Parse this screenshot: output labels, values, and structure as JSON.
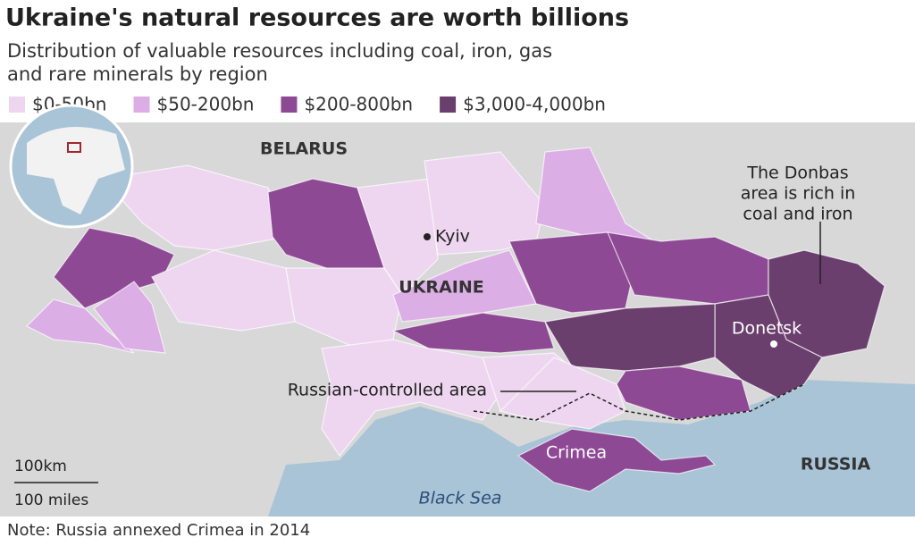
{
  "header": {
    "title": "Ukraine's natural resources are worth billions",
    "subtitle": [
      "Distribution of valuable resources including coal, iron, gas",
      "and rare minerals by region"
    ]
  },
  "legend": [
    {
      "label": "$0-50bn",
      "color": "#eed6f0"
    },
    {
      "label": "$50-200bn",
      "color": "#dcaee6"
    },
    {
      "label": "$200-800bn",
      "color": "#8e4994"
    },
    {
      "label": "$3,000-4,000bn",
      "color": "#6a3f6d"
    }
  ],
  "map": {
    "countries": [
      "BELARUS",
      "UKRAINE",
      "RUSSIA"
    ],
    "cities": [
      "Kyiv",
      "Donetsk"
    ],
    "areas": [
      "Crimea",
      "Black Sea"
    ],
    "annotations": {
      "russian_controlled": "Russian-controlled area",
      "donbas": [
        "The Donbas",
        "area is rich in",
        "coal and iron"
      ]
    },
    "scale": [
      "100km",
      "100 miles"
    ]
  },
  "footer": {
    "note": "Note: Russia annexed Crimea in 2014"
  }
}
